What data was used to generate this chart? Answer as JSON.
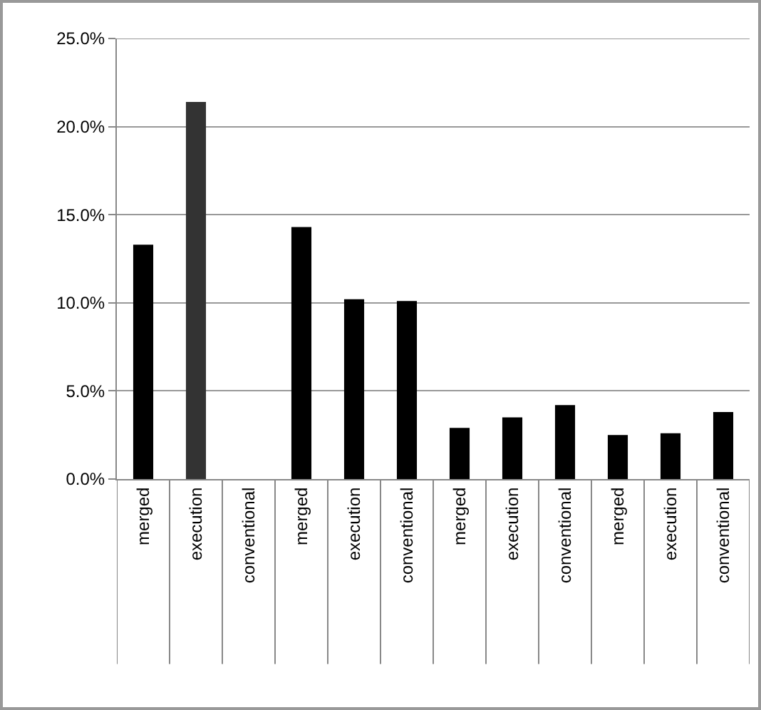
{
  "chart_data": {
    "type": "bar",
    "categories": [
      "merged",
      "execution",
      "conventional",
      "merged",
      "execution",
      "conventional",
      "merged",
      "execution",
      "conventional",
      "merged",
      "execution",
      "conventional"
    ],
    "values": [
      13.3,
      21.4,
      null,
      14.3,
      10.2,
      10.1,
      2.9,
      3.5,
      4.2,
      2.5,
      2.6,
      3.8
    ],
    "colors": [
      "#000000",
      "#333333",
      "#000000",
      "#000000",
      "#000000",
      "#000000",
      "#000000",
      "#000000",
      "#000000",
      "#000000",
      "#000000",
      "#000000"
    ],
    "ylim": [
      0,
      25
    ],
    "yticks": [
      {
        "value": 0,
        "label": "0.0%"
      },
      {
        "value": 5,
        "label": "5.0%"
      },
      {
        "value": 10,
        "label": "10.0%"
      },
      {
        "value": 15,
        "label": "15.0%"
      },
      {
        "value": 20,
        "label": "20.0%"
      },
      {
        "value": 25,
        "label": "25.0%"
      }
    ],
    "grid": "y"
  }
}
